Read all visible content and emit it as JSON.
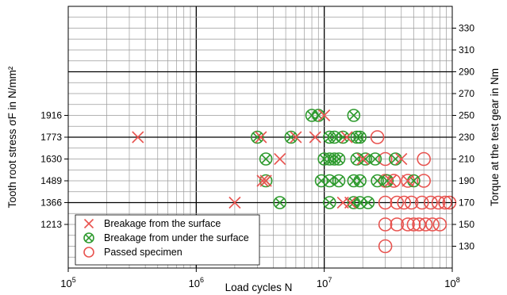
{
  "chart_data": {
    "type": "scatter",
    "x_scale": "log",
    "xlim": [
      100000,
      100000000
    ],
    "ylim_right": [
      110,
      350
    ],
    "xlabel": "Load cycles N",
    "ylabel": "Tooth root stress σF in N/mm²",
    "ylabel_right": "Torque at the test gear in Nm",
    "x_ticks": [
      "10^5",
      "10^6",
      "10^7",
      "10^8"
    ],
    "y_ticks_left": [
      {
        "label": "1916",
        "at": 250
      },
      {
        "label": "1773",
        "at": 230
      },
      {
        "label": "1630",
        "at": 210
      },
      {
        "label": "1489",
        "at": 190
      },
      {
        "label": "1366",
        "at": 170
      },
      {
        "label": "1213",
        "at": 150
      }
    ],
    "y_ticks_right": [
      "330",
      "310",
      "290",
      "270",
      "250",
      "230",
      "210",
      "190",
      "170",
      "150",
      "130"
    ],
    "grid": true,
    "legend_position": "bottom-left",
    "colors": {
      "surface": "#e8534f",
      "under": "#2e9a2e",
      "passed": "#e8534f"
    },
    "series": [
      {
        "name": "Breakage from the surface",
        "marker": "x",
        "points": [
          [
            350000,
            230
          ],
          [
            2000000,
            170
          ],
          [
            3300000,
            190
          ],
          [
            3500000,
            190
          ],
          [
            3200000,
            230
          ],
          [
            4500000,
            210
          ],
          [
            6000000,
            230
          ],
          [
            8500000,
            230
          ],
          [
            10000000,
            250
          ],
          [
            14000000,
            170
          ],
          [
            15000000,
            230
          ],
          [
            16000000,
            170
          ],
          [
            20000000,
            210
          ],
          [
            33000000,
            190
          ],
          [
            40000000,
            210
          ],
          [
            45000000,
            190
          ]
        ]
      },
      {
        "name": "Breakage from under the surface",
        "marker": "circle-x",
        "points": [
          [
            3000000,
            230
          ],
          [
            3500000,
            210
          ],
          [
            3500000,
            190
          ],
          [
            4500000,
            170
          ],
          [
            5500000,
            230
          ],
          [
            8000000,
            250
          ],
          [
            9000000,
            250
          ],
          [
            10000000,
            210
          ],
          [
            11000000,
            210
          ],
          [
            12000000,
            210
          ],
          [
            13000000,
            210
          ],
          [
            11000000,
            230
          ],
          [
            12000000,
            230
          ],
          [
            14000000,
            230
          ],
          [
            18000000,
            230
          ],
          [
            19000000,
            230
          ],
          [
            9500000,
            190
          ],
          [
            11000000,
            190
          ],
          [
            13000000,
            190
          ],
          [
            17000000,
            190
          ],
          [
            19000000,
            190
          ],
          [
            26000000,
            190
          ],
          [
            11000000,
            170
          ],
          [
            17000000,
            170
          ],
          [
            19000000,
            170
          ],
          [
            22000000,
            170
          ],
          [
            17000000,
            250
          ],
          [
            18000000,
            210
          ],
          [
            21000000,
            210
          ],
          [
            25000000,
            210
          ],
          [
            31000000,
            190
          ],
          [
            36000000,
            210
          ],
          [
            50000000,
            190
          ]
        ]
      },
      {
        "name": "Passed specimen",
        "marker": "circle",
        "points": [
          [
            26000000,
            230
          ],
          [
            30000000,
            210
          ],
          [
            30000000,
            190
          ],
          [
            30000000,
            170
          ],
          [
            30000000,
            150
          ],
          [
            30000000,
            130
          ],
          [
            35000000,
            190
          ],
          [
            37000000,
            170
          ],
          [
            37000000,
            150
          ],
          [
            45000000,
            190
          ],
          [
            48000000,
            170
          ],
          [
            50000000,
            150
          ],
          [
            55000000,
            150
          ],
          [
            58000000,
            170
          ],
          [
            60000000,
            190
          ],
          [
            60000000,
            210
          ],
          [
            62000000,
            150
          ],
          [
            68000000,
            170
          ],
          [
            70000000,
            150
          ],
          [
            78000000,
            170
          ],
          [
            80000000,
            150
          ],
          [
            88000000,
            170
          ],
          [
            95000000,
            170
          ],
          [
            45000000,
            150
          ],
          [
            42000000,
            170
          ]
        ]
      }
    ]
  }
}
